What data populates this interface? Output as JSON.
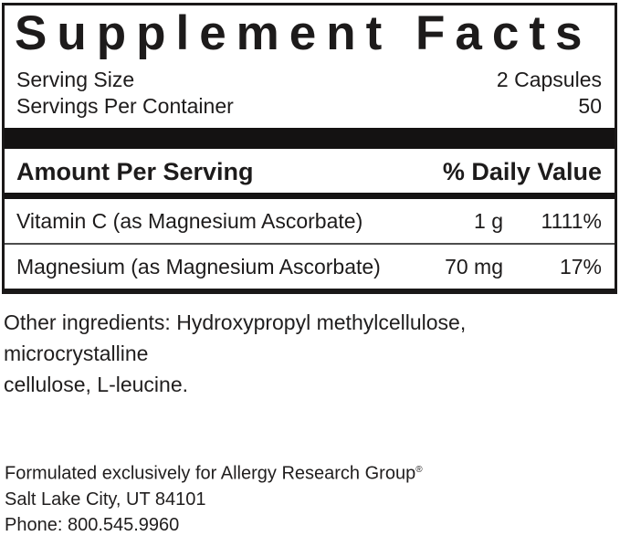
{
  "label": {
    "title": "Supplement Facts",
    "serving_rows": [
      {
        "label": "Serving Size",
        "value": "2 Capsules"
      },
      {
        "label": "Servings Per Container",
        "value": "50"
      }
    ],
    "column_headers": {
      "amount": "Amount Per Serving",
      "daily_value": "% Daily Value"
    },
    "nutrients": [
      {
        "name": "Vitamin C (as Magnesium Ascorbate)",
        "amount": "1 g",
        "daily_value": "1111%"
      },
      {
        "name": "Magnesium (as Magnesium Ascorbate)",
        "amount": "70 mg",
        "daily_value": "17%"
      }
    ]
  },
  "other_ingredients": {
    "lines": [
      "Other ingredients: Hydroxypropyl methylcellulose, microcrystalline",
      "cellulose, L-leucine."
    ]
  },
  "footer": {
    "formulated_for": "Formulated exclusively for Allergy Research Group",
    "trademark": "®",
    "address": "Salt Lake City, UT 84101",
    "phone": "Phone: 800.545.9960"
  },
  "colors": {
    "text": "#1d1b1b",
    "bar": "#141212",
    "divider": "#4d4d4d",
    "background": "#ffffff"
  }
}
